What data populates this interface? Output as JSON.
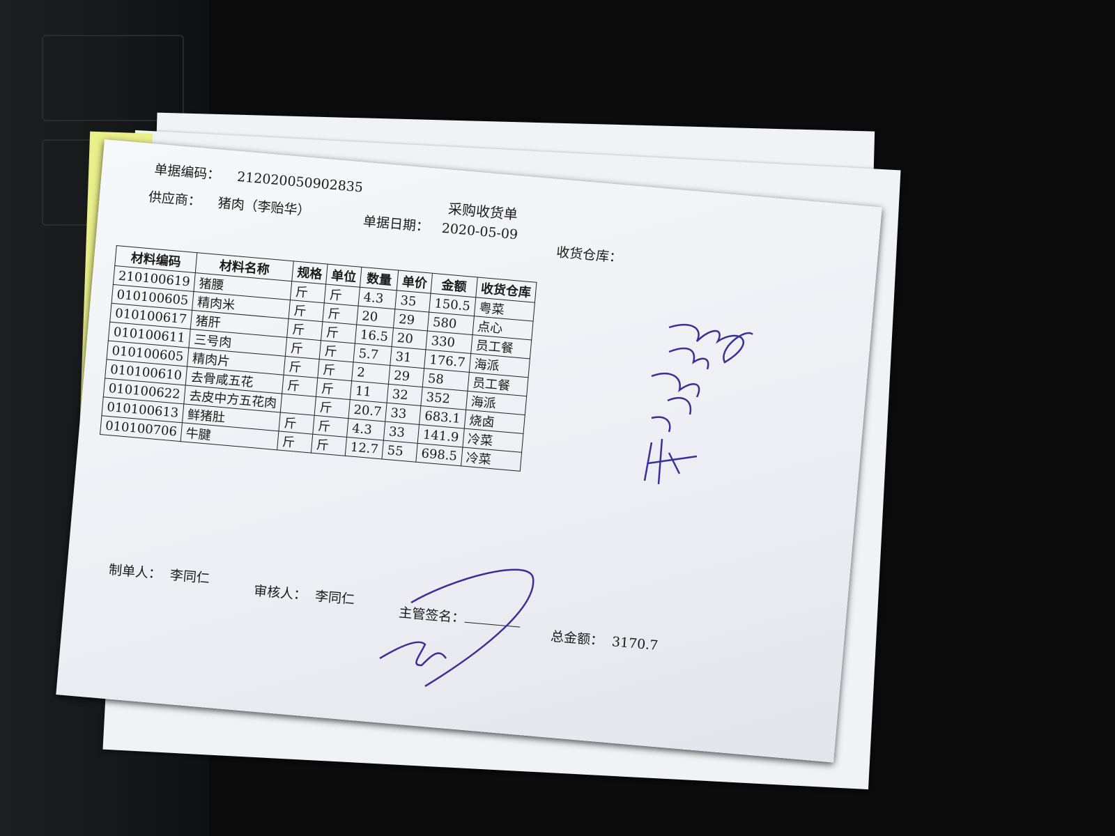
{
  "document": {
    "title": "采购收货单",
    "fields": [
      {
        "label": "单据编码：",
        "value": "212020050902835"
      },
      {
        "label": "供应商：",
        "value": "猪肉（李贻华）"
      },
      {
        "label": "单据日期：",
        "value": "2020-05-09"
      },
      {
        "label": "收货仓库：",
        "value": null
      }
    ],
    "table": {
      "columns": [
        "材料编码",
        "材料名称",
        "规格",
        "单位",
        "数量",
        "单价",
        "金额",
        "收货仓库"
      ],
      "rows": [
        [
          "210100619",
          "猪腰",
          "斤",
          "斤",
          4.3,
          35,
          150.5,
          "粤菜"
        ],
        [
          "010100605",
          "精肉米",
          "斤",
          "斤",
          20,
          29,
          580,
          "点心"
        ],
        [
          "010100617",
          "猪肝",
          "斤",
          "斤",
          16.5,
          20,
          330,
          "员工餐"
        ],
        [
          "010100611",
          "三号肉",
          "斤",
          "斤",
          5.7,
          31,
          176.7,
          "海派"
        ],
        [
          "010100605",
          "精肉片",
          "斤",
          "斤",
          2,
          29,
          58,
          "员工餐"
        ],
        [
          "010100610",
          "去骨咸五花",
          "斤",
          "斤",
          11,
          32,
          352,
          "海派"
        ],
        [
          "010100622",
          "去皮中方五花肉",
          null,
          "斤",
          20.7,
          33,
          683.1,
          "烧卤"
        ],
        [
          "010100613",
          "鲜猪肚",
          "斤",
          "斤",
          4.3,
          33,
          141.9,
          "冷菜"
        ],
        [
          "010100706",
          "牛腱",
          "斤",
          "斤",
          12.7,
          55,
          698.5,
          "冷菜"
        ]
      ]
    },
    "footer": [
      {
        "label": "制单人：",
        "value": "李同仁"
      },
      {
        "label": "审核人：",
        "value": "李同仁"
      },
      {
        "label": "主管签名：",
        "value": null
      },
      {
        "label": "总金额：",
        "value": 3170.7
      }
    ]
  }
}
